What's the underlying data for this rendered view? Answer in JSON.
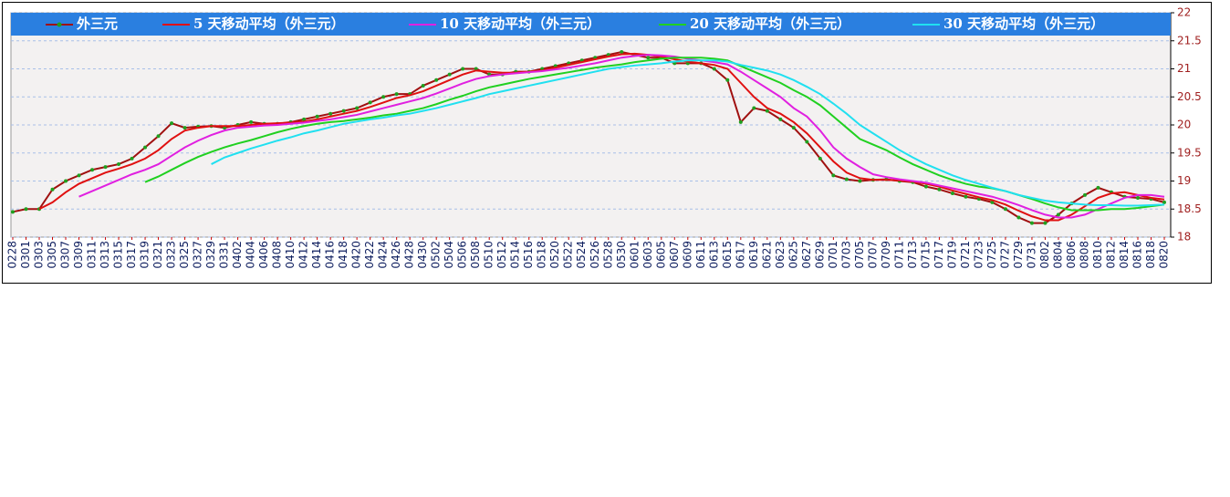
{
  "chart_data": {
    "type": "line",
    "categories": [
      "0228",
      "0301",
      "0303",
      "0305",
      "0307",
      "0309",
      "0311",
      "0313",
      "0315",
      "0317",
      "0319",
      "0321",
      "0323",
      "0325",
      "0327",
      "0329",
      "0331",
      "0402",
      "0404",
      "0406",
      "0408",
      "0410",
      "0412",
      "0414",
      "0416",
      "0418",
      "0420",
      "0422",
      "0424",
      "0426",
      "0428",
      "0430",
      "0502",
      "0504",
      "0506",
      "0508",
      "0510",
      "0512",
      "0514",
      "0516",
      "0518",
      "0520",
      "0522",
      "0524",
      "0526",
      "0528",
      "0530",
      "0601",
      "0603",
      "0605",
      "0607",
      "0609",
      "0611",
      "0613",
      "0615",
      "0617",
      "0619",
      "0621",
      "0623",
      "0625",
      "0627",
      "0629",
      "0701",
      "0703",
      "0705",
      "0707",
      "0709",
      "0711",
      "0713",
      "0715",
      "0717",
      "0719",
      "0721",
      "0723",
      "0725",
      "0727",
      "0729",
      "0731",
      "0802",
      "0804",
      "0806",
      "0808",
      "0810",
      "0812",
      "0814",
      "0816",
      "0818",
      "0820"
    ],
    "series": [
      {
        "name": "外三元",
        "color": "#a01010",
        "marker_color": "#20a020",
        "values": [
          18.45,
          18.5,
          18.5,
          18.85,
          19.0,
          19.1,
          19.2,
          19.25,
          19.3,
          19.4,
          19.6,
          19.8,
          20.03,
          19.95,
          19.97,
          19.98,
          19.95,
          20.0,
          20.05,
          20.02,
          20.02,
          20.05,
          20.1,
          20.15,
          20.2,
          20.25,
          20.3,
          20.4,
          20.5,
          20.55,
          20.55,
          20.7,
          20.8,
          20.9,
          21.0,
          21.0,
          20.9,
          20.9,
          20.95,
          20.95,
          21.0,
          21.05,
          21.1,
          21.15,
          21.2,
          21.25,
          21.3,
          21.25,
          21.2,
          21.2,
          21.1,
          21.1,
          21.1,
          21.0,
          20.8,
          20.05,
          20.3,
          20.25,
          20.1,
          19.95,
          19.7,
          19.4,
          19.1,
          19.03,
          19.0,
          19.02,
          19.03,
          19.0,
          18.98,
          18.9,
          18.85,
          18.78,
          18.72,
          18.68,
          18.62,
          18.5,
          18.35,
          18.25,
          18.25,
          18.4,
          18.6,
          18.75,
          18.88,
          18.8,
          18.72,
          18.7,
          18.68,
          18.62
        ]
      },
      {
        "name": "5 天移动平均（外三元）",
        "color": "#e01010",
        "values": [
          null,
          null,
          18.5,
          18.62,
          18.8,
          18.95,
          19.05,
          19.15,
          19.22,
          19.3,
          19.4,
          19.55,
          19.75,
          19.9,
          19.95,
          19.98,
          19.98,
          19.98,
          20.0,
          20.02,
          20.03,
          20.04,
          20.06,
          20.1,
          20.15,
          20.2,
          20.25,
          20.32,
          20.4,
          20.48,
          20.53,
          20.6,
          20.7,
          20.8,
          20.9,
          20.97,
          20.95,
          20.93,
          20.93,
          20.95,
          20.97,
          21.02,
          21.07,
          21.12,
          21.17,
          21.22,
          21.26,
          21.27,
          21.25,
          21.22,
          21.17,
          21.13,
          21.1,
          21.07,
          21.0,
          20.75,
          20.5,
          20.3,
          20.2,
          20.05,
          19.85,
          19.6,
          19.35,
          19.15,
          19.05,
          19.02,
          19.02,
          19.01,
          18.99,
          18.95,
          18.9,
          18.83,
          18.77,
          18.71,
          18.66,
          18.58,
          18.47,
          18.37,
          18.3,
          18.3,
          18.4,
          18.55,
          18.7,
          18.78,
          18.8,
          18.75,
          18.7,
          18.67
        ]
      },
      {
        "name": "10 天移动平均（外三元）",
        "color": "#e020e0",
        "values": [
          null,
          null,
          null,
          null,
          null,
          18.72,
          18.82,
          18.92,
          19.02,
          19.12,
          19.2,
          19.3,
          19.45,
          19.6,
          19.72,
          19.82,
          19.9,
          19.95,
          19.97,
          19.99,
          20.0,
          20.02,
          20.04,
          20.07,
          20.1,
          20.14,
          20.18,
          20.24,
          20.3,
          20.36,
          20.42,
          20.48,
          20.56,
          20.65,
          20.74,
          20.82,
          20.87,
          20.9,
          20.92,
          20.94,
          20.96,
          20.99,
          21.02,
          21.06,
          21.1,
          21.15,
          21.2,
          21.23,
          21.25,
          21.24,
          21.22,
          21.18,
          21.15,
          21.12,
          21.08,
          20.95,
          20.8,
          20.65,
          20.5,
          20.3,
          20.15,
          19.9,
          19.6,
          19.4,
          19.25,
          19.12,
          19.07,
          19.03,
          19.0,
          18.97,
          18.92,
          18.87,
          18.82,
          18.77,
          18.72,
          18.65,
          18.57,
          18.48,
          18.4,
          18.35,
          18.35,
          18.4,
          18.5,
          18.6,
          18.7,
          18.75,
          18.75,
          18.72
        ]
      },
      {
        "name": "20 天移动平均（外三元）",
        "color": "#20d020",
        "values": [
          null,
          null,
          null,
          null,
          null,
          null,
          null,
          null,
          null,
          null,
          18.98,
          19.08,
          19.2,
          19.32,
          19.43,
          19.52,
          19.6,
          19.67,
          19.73,
          19.8,
          19.87,
          19.93,
          19.98,
          20.02,
          20.05,
          20.07,
          20.1,
          20.13,
          20.17,
          20.2,
          20.25,
          20.3,
          20.37,
          20.45,
          20.52,
          20.6,
          20.67,
          20.72,
          20.77,
          20.82,
          20.86,
          20.9,
          20.94,
          20.98,
          21.02,
          21.05,
          21.08,
          21.12,
          21.15,
          21.18,
          21.2,
          21.2,
          21.2,
          21.18,
          21.15,
          21.05,
          20.95,
          20.85,
          20.75,
          20.62,
          20.5,
          20.35,
          20.15,
          19.95,
          19.75,
          19.65,
          19.55,
          19.42,
          19.3,
          19.2,
          19.1,
          19.02,
          18.95,
          18.9,
          18.87,
          18.82,
          18.75,
          18.68,
          18.6,
          18.53,
          18.48,
          18.48,
          18.48,
          18.5,
          18.5,
          18.52,
          18.55,
          18.58
        ]
      },
      {
        "name": "30 天移动平均（外三元）",
        "color": "#20e0f0",
        "values": [
          null,
          null,
          null,
          null,
          null,
          null,
          null,
          null,
          null,
          null,
          null,
          null,
          null,
          null,
          null,
          19.3,
          19.42,
          19.5,
          19.58,
          19.65,
          19.72,
          19.78,
          19.85,
          19.9,
          19.96,
          20.02,
          20.06,
          20.1,
          20.13,
          20.17,
          20.2,
          20.25,
          20.3,
          20.36,
          20.42,
          20.48,
          20.55,
          20.6,
          20.65,
          20.7,
          20.75,
          20.8,
          20.85,
          20.9,
          20.95,
          21.0,
          21.03,
          21.06,
          21.08,
          21.1,
          21.13,
          21.15,
          21.15,
          21.15,
          21.13,
          21.07,
          21.02,
          20.97,
          20.9,
          20.8,
          20.68,
          20.55,
          20.38,
          20.2,
          20.0,
          19.85,
          19.7,
          19.55,
          19.42,
          19.3,
          19.2,
          19.1,
          19.02,
          18.95,
          18.88,
          18.82,
          18.75,
          18.7,
          18.65,
          18.62,
          18.6,
          18.58,
          18.57,
          18.57,
          18.56,
          18.56,
          18.57,
          18.58
        ]
      }
    ],
    "ylim": [
      18,
      22
    ],
    "yticks": [
      18,
      18.5,
      19,
      19.5,
      20,
      20.5,
      21,
      21.5,
      22
    ],
    "y_axis_side": "right",
    "grid": true,
    "legend_color": "#2a7fe0"
  }
}
